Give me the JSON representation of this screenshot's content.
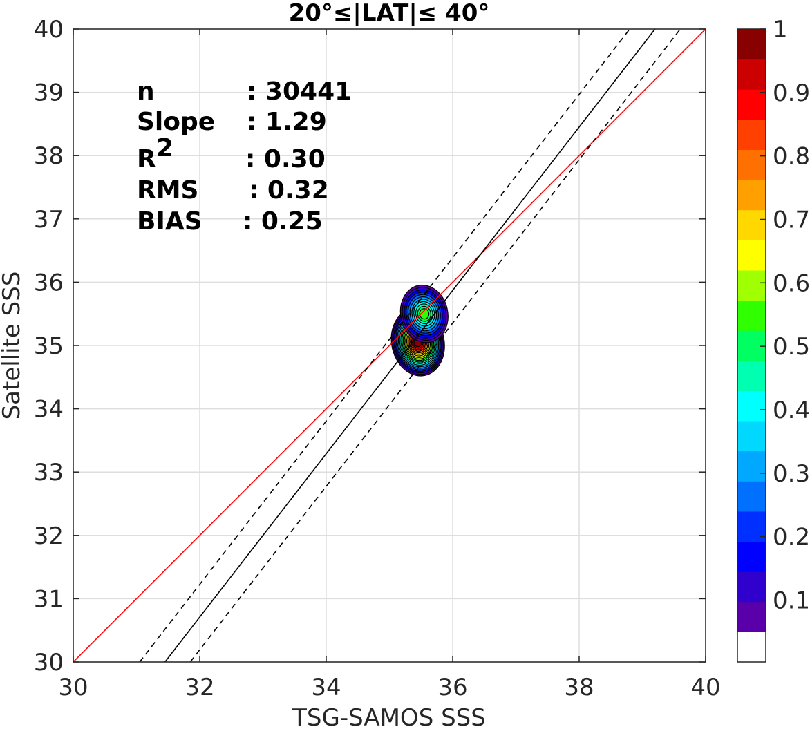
{
  "chart_data": {
    "type": "contour",
    "title": "20°≤|LAT|≤ 40°",
    "xlabel": "TSG-SAMOS SSS",
    "ylabel": "Satellite SSS",
    "xlim": [
      30,
      40
    ],
    "ylim": [
      30,
      40
    ],
    "xticks": [
      "30",
      "32",
      "34",
      "36",
      "38",
      "40"
    ],
    "yticks": [
      "30",
      "31",
      "32",
      "33",
      "34",
      "35",
      "36",
      "37",
      "38",
      "39",
      "40"
    ],
    "grid": true,
    "lines": [
      {
        "name": "1:1",
        "style": "solid",
        "color": "#ff0000",
        "points": [
          [
            30,
            30
          ],
          [
            40,
            40
          ]
        ]
      },
      {
        "name": "fit",
        "style": "solid",
        "color": "#000000",
        "points": [
          [
            31.45,
            30
          ],
          [
            39.2,
            40
          ]
        ]
      },
      {
        "name": "fit-upper",
        "style": "dashed",
        "color": "#000000",
        "points": [
          [
            31.05,
            30
          ],
          [
            38.8,
            40
          ]
        ]
      },
      {
        "name": "fit-lower",
        "style": "dashed",
        "color": "#000000",
        "points": [
          [
            31.85,
            30
          ],
          [
            39.6,
            40
          ]
        ]
      }
    ],
    "density_peaks": [
      {
        "x": 35.45,
        "y": 35.05,
        "peak": 1.0
      },
      {
        "x": 35.55,
        "y": 35.5,
        "peak": 0.55
      }
    ],
    "colorbar": {
      "range": [
        0,
        1
      ],
      "ticks": [
        "0.1",
        "0.2",
        "0.3",
        "0.4",
        "0.5",
        "0.6",
        "0.7",
        "0.8",
        "0.9",
        "1"
      ],
      "colors": [
        "#ffffff",
        "#5a00aa",
        "#3000cc",
        "#0000ff",
        "#0030ff",
        "#0070ff",
        "#00a8ff",
        "#00d8ff",
        "#00ffff",
        "#00ffb0",
        "#00ff60",
        "#30ff00",
        "#a0ff00",
        "#ffff00",
        "#ffd800",
        "#ffa000",
        "#ff7000",
        "#ff4000",
        "#ff0000",
        "#cc0000",
        "#880000"
      ]
    },
    "stats": [
      {
        "label": "n",
        "value": ": 30441"
      },
      {
        "label": "Slope",
        "value": ": 1.29"
      },
      {
        "label": "R",
        "sup": "2",
        "value": ": 0.30"
      },
      {
        "label": "RMS",
        "value": ": 0.32"
      },
      {
        "label": "BIAS",
        "value": ": 0.25"
      }
    ]
  }
}
